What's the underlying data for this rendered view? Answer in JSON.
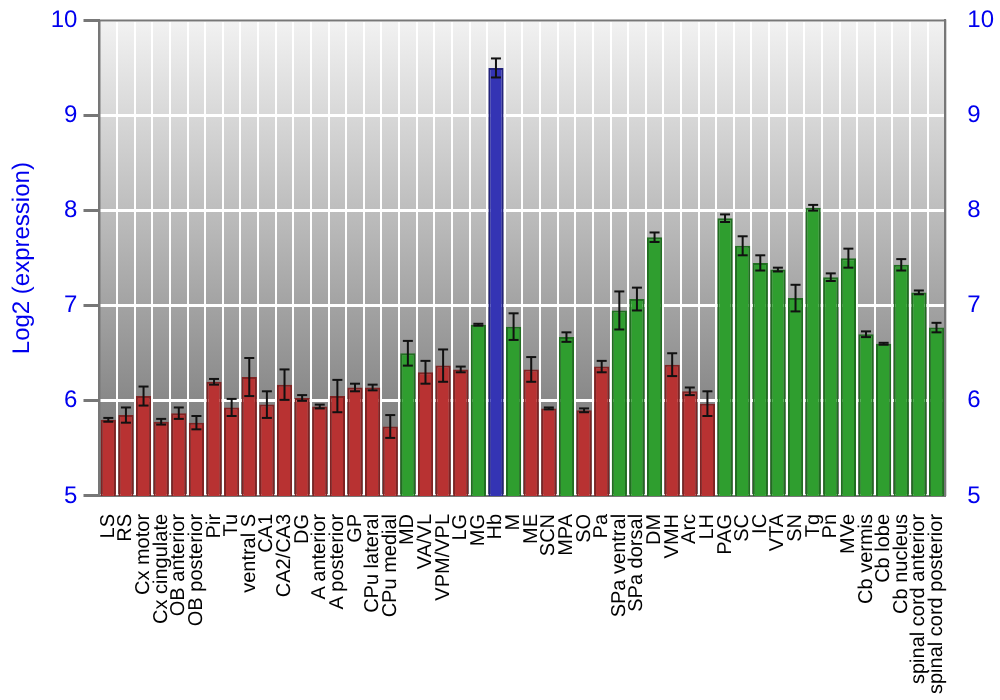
{
  "chart_data": {
    "type": "bar",
    "ylabel": "Log2 (expression)",
    "categories": [
      "LS",
      "RS",
      "Cx motor",
      "Cx cingulate",
      "OB anterior",
      "OB posterior",
      "Pir",
      "Tu",
      "ventral S",
      "CA1",
      "CA2/CA3",
      "DG",
      "A anterior",
      "A posterior",
      "GP",
      "CPu lateral",
      "CPu medial",
      "MD",
      "VA/VL",
      "VPM/VPL",
      "LG",
      "MG",
      "Hb",
      "M",
      "ME",
      "SCN",
      "MPA",
      "SO",
      "Pa",
      "SPa ventral",
      "SPa dorsal",
      "DM",
      "VMH",
      "Arc",
      "LH",
      "PAG",
      "SC",
      "IC",
      "VTA",
      "SN",
      "Tg",
      "Pn",
      "MVe",
      "Cb vermis",
      "Cb lobe",
      "Cb nucleus",
      "spinal cord anterior",
      "spinal cord posterior"
    ],
    "values": [
      5.8,
      5.85,
      6.05,
      5.78,
      5.87,
      5.77,
      6.2,
      5.93,
      6.25,
      5.96,
      6.17,
      6.03,
      5.94,
      6.05,
      6.14,
      6.14,
      5.73,
      6.5,
      6.3,
      6.37,
      6.33,
      6.8,
      9.5,
      6.78,
      6.33,
      5.92,
      6.67,
      5.9,
      6.36,
      6.95,
      7.07,
      7.72,
      6.38,
      6.1,
      5.97,
      7.92,
      7.63,
      7.45,
      7.38,
      7.08,
      8.03,
      7.3,
      7.5,
      6.7,
      6.6,
      7.43,
      7.14,
      6.77
    ],
    "errors": [
      0.02,
      0.08,
      0.1,
      0.03,
      0.06,
      0.07,
      0.03,
      0.09,
      0.2,
      0.14,
      0.16,
      0.03,
      0.02,
      0.17,
      0.04,
      0.03,
      0.12,
      0.13,
      0.12,
      0.17,
      0.03,
      0.01,
      0.1,
      0.14,
      0.13,
      0.01,
      0.05,
      0.02,
      0.06,
      0.2,
      0.12,
      0.05,
      0.12,
      0.04,
      0.13,
      0.04,
      0.1,
      0.08,
      0.02,
      0.14,
      0.03,
      0.04,
      0.1,
      0.03,
      0.01,
      0.06,
      0.02,
      0.05
    ],
    "colors": [
      "#b83232",
      "#b83232",
      "#b83232",
      "#b83232",
      "#b83232",
      "#b83232",
      "#b83232",
      "#b83232",
      "#b83232",
      "#b83232",
      "#b83232",
      "#b83232",
      "#b83232",
      "#b83232",
      "#b83232",
      "#b83232",
      "#b83232",
      "#2f9e2f",
      "#b83232",
      "#b83232",
      "#b83232",
      "#2f9e2f",
      "#3434b4",
      "#2f9e2f",
      "#b83232",
      "#b83232",
      "#2f9e2f",
      "#b83232",
      "#b83232",
      "#2f9e2f",
      "#2f9e2f",
      "#2f9e2f",
      "#b83232",
      "#b83232",
      "#b83232",
      "#2f9e2f",
      "#2f9e2f",
      "#2f9e2f",
      "#2f9e2f",
      "#2f9e2f",
      "#2f9e2f",
      "#2f9e2f",
      "#2f9e2f",
      "#2f9e2f",
      "#2f9e2f",
      "#2f9e2f",
      "#2f9e2f",
      "#2f9e2f"
    ],
    "ylim": [
      5,
      10
    ],
    "yticks": [
      5,
      6,
      7,
      8,
      9,
      10
    ],
    "y2lim": [
      5,
      10
    ],
    "y2ticks": [
      5,
      6,
      7,
      8,
      9,
      10
    ],
    "grid": true,
    "legend": false
  }
}
